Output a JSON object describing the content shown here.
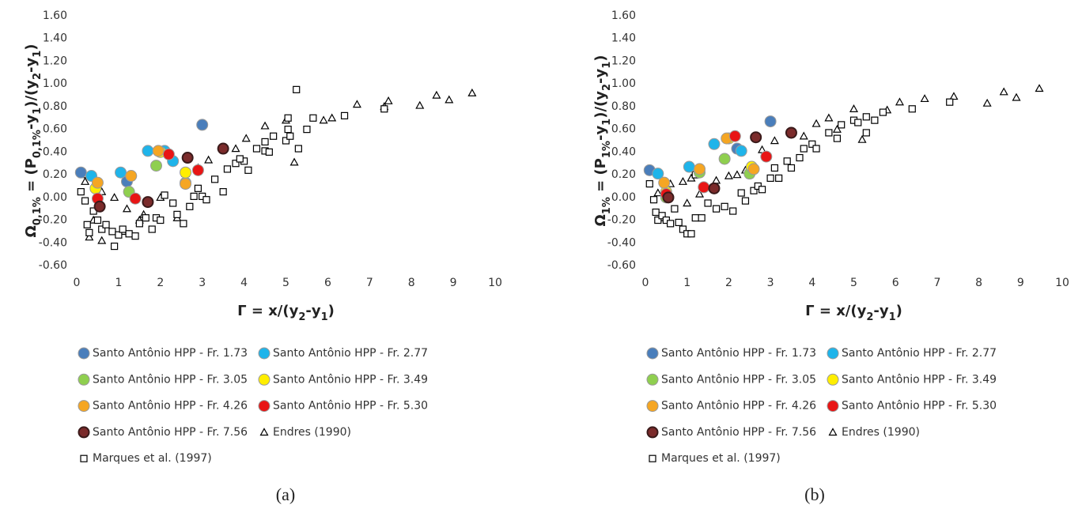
{
  "chart_data": [
    {
      "type": "scatter",
      "caption": "(a)",
      "xlabel": [
        "Γ = x/(y",
        "2",
        "-y",
        "1",
        ")"
      ],
      "ylabel": [
        "Ω",
        "0,1%",
        " = (P",
        "0,1%",
        "-y",
        "1",
        ")/(y",
        "2",
        "-y",
        "1",
        ")"
      ],
      "xlim": [
        0,
        10
      ],
      "ylim": [
        -0.6,
        1.6
      ],
      "grid": false,
      "xticks": [
        0,
        1,
        2,
        3,
        4,
        5,
        6,
        7,
        8,
        9,
        10
      ],
      "yticks": [
        {
          "value": -0.6,
          "label": "-0.60"
        },
        {
          "value": -0.4,
          "label": "-0.40"
        },
        {
          "value": -0.2,
          "label": "-0.20"
        },
        {
          "value": 0,
          "label": "0.00"
        },
        {
          "value": 0.2,
          "label": "0.20"
        },
        {
          "value": 0.4,
          "label": "0.40"
        },
        {
          "value": 0.6,
          "label": "0.60"
        },
        {
          "value": 0.8,
          "label": "0.80"
        },
        {
          "value": 1.0,
          "label": "1.00"
        },
        {
          "value": 1.2,
          "label": "1.20"
        },
        {
          "value": 1.4,
          "label": "1.40"
        },
        {
          "value": 1.6,
          "label": "1.60"
        }
      ],
      "series": [
        {
          "name": "Santo Antônio HPP - Fr. 1.73",
          "marker": "circle",
          "color": "#4a7ebb",
          "x": [
            0.1,
            1.2,
            3.0
          ],
          "values": [
            0.22,
            0.14,
            0.64
          ]
        },
        {
          "name": "Santo Antônio HPP - Fr. 2.77",
          "marker": "circle",
          "color": "#1fb4ea",
          "x": [
            0.35,
            1.05,
            1.7,
            2.3,
            2.1
          ],
          "values": [
            0.19,
            0.22,
            0.41,
            0.32,
            0.41
          ]
        },
        {
          "name": "Santo Antônio HPP - Fr. 3.05",
          "marker": "circle",
          "color": "#8fcf4f",
          "x": [
            1.25,
            1.9,
            2.6
          ],
          "values": [
            0.05,
            0.28,
            0.13
          ]
        },
        {
          "name": "Santo Antônio HPP - Fr. 3.49",
          "marker": "circle",
          "color": "#ffee00",
          "x": [
            0.45,
            2.0,
            2.6
          ],
          "values": [
            0.08,
            0.4,
            0.22
          ]
        },
        {
          "name": "Santo Antônio HPP - Fr. 4.26",
          "marker": "circle",
          "color": "#f5a623",
          "x": [
            0.5,
            1.3,
            1.95,
            2.6
          ],
          "values": [
            0.13,
            0.19,
            0.41,
            0.12
          ]
        },
        {
          "name": "Santo Antônio HPP - Fr. 5.30",
          "marker": "circle",
          "color": "#e81515",
          "x": [
            0.5,
            1.4,
            2.2,
            2.9
          ],
          "values": [
            -0.01,
            -0.01,
            0.38,
            0.24
          ]
        },
        {
          "name": "Santo Antônio HPP - Fr. 7.56",
          "marker": "circle-dark",
          "color": "#7b2b2b",
          "x": [
            0.55,
            1.7,
            2.65,
            3.5
          ],
          "values": [
            -0.08,
            -0.04,
            0.35,
            0.43
          ]
        },
        {
          "name": "Endres (1990)",
          "marker": "triangle",
          "color": "#000000",
          "x": [
            0.15,
            0.2,
            0.3,
            0.6,
            0.6,
            0.9,
            1.2,
            1.1,
            1.6,
            2.0,
            2.6,
            2.9,
            3.15,
            3.8,
            4.05,
            4.5,
            5.0,
            5.2,
            5.9,
            6.1,
            6.7,
            7.35,
            7.45,
            8.2,
            8.6,
            8.9,
            9.45,
            1.5,
            2.4,
            0.4
          ],
          "values": [
            0.2,
            0.14,
            -0.35,
            -0.38,
            0.05,
            0.0,
            -0.1,
            -0.3,
            -0.15,
            0.0,
            0.21,
            0.26,
            0.33,
            0.43,
            0.52,
            0.63,
            0.68,
            0.31,
            0.68,
            0.7,
            0.82,
            0.8,
            0.85,
            0.81,
            0.9,
            0.86,
            0.92,
            -0.2,
            -0.18,
            -0.2
          ]
        },
        {
          "name": "Marques et al. (1997)",
          "marker": "square",
          "color": "#000000",
          "x": [
            0.1,
            0.2,
            0.25,
            0.3,
            0.4,
            0.5,
            0.6,
            0.7,
            0.85,
            0.9,
            1.0,
            1.1,
            1.25,
            1.4,
            1.5,
            1.65,
            1.8,
            1.9,
            2.0,
            2.1,
            2.3,
            2.4,
            2.55,
            2.7,
            2.8,
            2.9,
            3.0,
            3.1,
            3.3,
            3.5,
            3.6,
            3.8,
            4.0,
            4.1,
            4.3,
            4.5,
            4.6,
            4.7,
            5.0,
            5.05,
            5.1,
            5.25,
            5.3,
            5.5,
            5.65,
            6.4,
            7.35,
            5.05,
            4.5,
            3.9
          ],
          "values": [
            0.05,
            -0.03,
            -0.24,
            -0.31,
            -0.12,
            -0.2,
            -0.28,
            -0.24,
            -0.3,
            -0.43,
            -0.33,
            -0.28,
            -0.32,
            -0.34,
            -0.23,
            -0.18,
            -0.28,
            -0.18,
            -0.2,
            0.02,
            -0.05,
            -0.15,
            -0.23,
            -0.08,
            0.01,
            0.08,
            0.01,
            -0.02,
            0.16,
            0.05,
            0.25,
            0.3,
            0.32,
            0.24,
            0.43,
            0.41,
            0.4,
            0.54,
            0.5,
            0.6,
            0.54,
            0.95,
            0.43,
            0.6,
            0.7,
            0.72,
            0.78,
            0.7,
            0.49,
            0.34
          ]
        }
      ]
    },
    {
      "type": "scatter",
      "caption": "(b)",
      "xlabel": [
        "Γ = x/(y",
        "2",
        "-y",
        "1",
        ")"
      ],
      "ylabel": [
        "Ω",
        "1%",
        " = (P",
        "1%",
        "-y",
        "1",
        ")/(y",
        "2",
        "-y",
        "1",
        ")"
      ],
      "xlim": [
        0,
        10
      ],
      "ylim": [
        -0.6,
        1.6
      ],
      "grid": false,
      "xticks": [
        0,
        1,
        2,
        3,
        4,
        5,
        6,
        7,
        8,
        9,
        10
      ],
      "yticks": [
        {
          "value": -0.6,
          "label": "-0.60"
        },
        {
          "value": -0.4,
          "label": "-0.40"
        },
        {
          "value": -0.2,
          "label": "-0.20"
        },
        {
          "value": 0,
          "label": "0.00"
        },
        {
          "value": 0.2,
          "label": "0.20"
        },
        {
          "value": 0.4,
          "label": "0.40"
        },
        {
          "value": 0.6,
          "label": "0.60"
        },
        {
          "value": 0.8,
          "label": "0.80"
        },
        {
          "value": 1.0,
          "label": "1.00"
        },
        {
          "value": 1.2,
          "label": "1.20"
        },
        {
          "value": 1.4,
          "label": "1.40"
        },
        {
          "value": 1.6,
          "label": "1.60"
        }
      ],
      "series": [
        {
          "name": "Santo Antônio HPP - Fr. 1.73",
          "marker": "circle",
          "color": "#4a7ebb",
          "x": [
            0.1,
            2.2,
            3.0
          ],
          "values": [
            0.24,
            0.43,
            0.67
          ]
        },
        {
          "name": "Santo Antônio HPP - Fr. 2.77",
          "marker": "circle",
          "color": "#1fb4ea",
          "x": [
            0.3,
            1.05,
            1.65,
            2.3
          ],
          "values": [
            0.21,
            0.27,
            0.47,
            0.41
          ]
        },
        {
          "name": "Santo Antônio HPP - Fr. 3.05",
          "marker": "circle",
          "color": "#8fcf4f",
          "x": [
            1.3,
            1.9,
            2.5,
            0.5
          ],
          "values": [
            0.22,
            0.34,
            0.21,
            0.0
          ]
        },
        {
          "name": "Santo Antônio HPP - Fr. 3.49",
          "marker": "circle",
          "color": "#ffee00",
          "x": [
            0.5,
            2.0,
            2.55
          ],
          "values": [
            0.05,
            0.52,
            0.27
          ]
        },
        {
          "name": "Santo Antônio HPP - Fr. 4.26",
          "marker": "circle",
          "color": "#f5a623",
          "x": [
            0.45,
            1.3,
            1.95,
            2.6
          ],
          "values": [
            0.13,
            0.25,
            0.52,
            0.25
          ]
        },
        {
          "name": "Santo Antônio HPP - Fr. 5.30",
          "marker": "circle",
          "color": "#e81515",
          "x": [
            0.5,
            1.4,
            2.15,
            2.9
          ],
          "values": [
            0.03,
            0.09,
            0.54,
            0.36
          ]
        },
        {
          "name": "Santo Antônio HPP - Fr. 7.56",
          "marker": "circle-dark",
          "color": "#7b2b2b",
          "x": [
            0.55,
            1.65,
            2.65,
            3.5
          ],
          "values": [
            0.0,
            0.08,
            0.53,
            0.57
          ]
        },
        {
          "name": "Endres (1990)",
          "marker": "triangle",
          "color": "#000000",
          "x": [
            0.15,
            0.3,
            0.6,
            0.9,
            1.1,
            1.3,
            1.7,
            2.0,
            2.2,
            2.4,
            2.8,
            3.1,
            3.8,
            4.1,
            4.4,
            4.6,
            5.0,
            5.2,
            5.8,
            6.1,
            6.7,
            7.4,
            8.2,
            8.6,
            8.9,
            9.45,
            0.4,
            1.0
          ],
          "values": [
            0.23,
            0.04,
            0.12,
            0.14,
            0.17,
            0.03,
            0.15,
            0.19,
            0.2,
            0.24,
            0.42,
            0.5,
            0.54,
            0.65,
            0.7,
            0.6,
            0.78,
            0.51,
            0.77,
            0.84,
            0.87,
            0.89,
            0.83,
            0.93,
            0.88,
            0.96,
            -0.18,
            -0.05
          ]
        },
        {
          "name": "Marques et al. (1997)",
          "marker": "square",
          "color": "#000000",
          "x": [
            0.1,
            0.2,
            0.25,
            0.3,
            0.4,
            0.5,
            0.6,
            0.7,
            0.8,
            0.9,
            1.0,
            1.1,
            1.2,
            1.35,
            1.5,
            1.7,
            1.9,
            2.1,
            2.3,
            2.4,
            2.6,
            2.7,
            2.8,
            3.0,
            3.1,
            3.2,
            3.4,
            3.5,
            3.7,
            3.8,
            4.0,
            4.1,
            4.4,
            4.6,
            4.7,
            5.0,
            5.1,
            5.3,
            5.5,
            5.7,
            5.3,
            6.4,
            7.3,
            2.5,
            1.2
          ],
          "values": [
            0.12,
            -0.02,
            -0.13,
            -0.2,
            -0.16,
            -0.2,
            -0.23,
            -0.1,
            -0.22,
            -0.28,
            -0.32,
            -0.32,
            -0.18,
            -0.18,
            -0.05,
            -0.1,
            -0.08,
            -0.12,
            0.04,
            -0.03,
            0.06,
            0.1,
            0.07,
            0.17,
            0.26,
            0.17,
            0.32,
            0.26,
            0.35,
            0.43,
            0.47,
            0.43,
            0.57,
            0.52,
            0.64,
            0.68,
            0.66,
            0.71,
            0.68,
            0.75,
            0.57,
            0.78,
            0.84,
            0.2,
            0.2
          ]
        }
      ]
    }
  ]
}
